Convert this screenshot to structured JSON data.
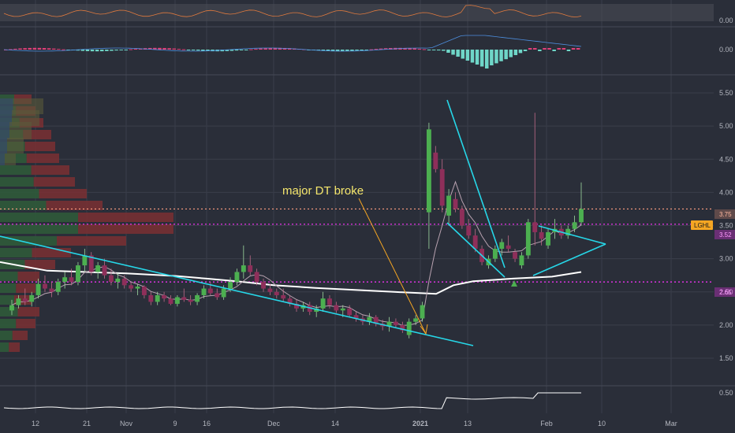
{
  "colors": {
    "background": "#2a2e39",
    "grid": "#3a3e4a",
    "up": "#4caf50",
    "down": "#8e2f5a",
    "trendline": "#26d7e8",
    "ma_long": "#ffffff",
    "ma_short": "#b8a2b0",
    "level_magenta": "#ff33ff",
    "level_orange": "#ff9e80",
    "annotation": "#f5e66c",
    "arrow": "#f5a623",
    "rsi_line": "#e07a3e",
    "macd_line": "#4d8fe0",
    "ticker_tag": "#f5a623"
  },
  "annotation": {
    "text": "major DT broke"
  },
  "ticker_tag": {
    "label": "LGHL",
    "price": "3.75"
  },
  "price_tags": {
    "magenta_upper": "3.52",
    "magenta_lower": "2.65"
  },
  "chart_data": [
    {
      "type": "line",
      "panel": "oscillator-1",
      "y_ticks": [
        "0.00"
      ]
    },
    {
      "type": "bar",
      "panel": "macd-histogram",
      "y_ticks": [
        "0.00"
      ]
    },
    {
      "type": "candlestick",
      "panel": "price",
      "x_ticks": [
        "12",
        "21",
        "Nov",
        "9",
        "16",
        "Dec",
        "14",
        "2021",
        "13",
        "Feb",
        "10",
        "Mar"
      ],
      "y_ticks": [
        "1.50",
        "2.00",
        "2.50",
        "3.00",
        "3.50",
        "4.00",
        "4.50",
        "5.00",
        "5.50"
      ],
      "ylim": [
        1.25,
        5.75
      ],
      "horizontal_levels": [
        {
          "value": 3.75,
          "style": "dotted",
          "color": "#ff9e80"
        },
        {
          "value": 3.52,
          "style": "dotted",
          "color": "#ff33ff"
        },
        {
          "value": 2.65,
          "style": "dotted",
          "color": "#ff33ff"
        }
      ],
      "candles": [
        {
          "o": 2.22,
          "h": 2.38,
          "l": 2.15,
          "c": 2.3
        },
        {
          "o": 2.3,
          "h": 2.45,
          "l": 2.25,
          "c": 2.4
        },
        {
          "o": 2.4,
          "h": 2.55,
          "l": 2.3,
          "c": 2.35
        },
        {
          "o": 2.35,
          "h": 2.5,
          "l": 2.28,
          "c": 2.45
        },
        {
          "o": 2.45,
          "h": 2.7,
          "l": 2.4,
          "c": 2.62
        },
        {
          "o": 2.62,
          "h": 2.75,
          "l": 2.5,
          "c": 2.55
        },
        {
          "o": 2.55,
          "h": 2.65,
          "l": 2.42,
          "c": 2.5
        },
        {
          "o": 2.5,
          "h": 2.7,
          "l": 2.45,
          "c": 2.65
        },
        {
          "o": 2.65,
          "h": 2.8,
          "l": 2.55,
          "c": 2.72
        },
        {
          "o": 2.72,
          "h": 2.85,
          "l": 2.6,
          "c": 2.65
        },
        {
          "o": 2.65,
          "h": 2.95,
          "l": 2.6,
          "c": 2.9
        },
        {
          "o": 2.9,
          "h": 3.15,
          "l": 2.8,
          "c": 3.05
        },
        {
          "o": 3.05,
          "h": 3.1,
          "l": 2.75,
          "c": 2.8
        },
        {
          "o": 2.8,
          "h": 2.95,
          "l": 2.7,
          "c": 2.9
        },
        {
          "o": 2.9,
          "h": 3.0,
          "l": 2.7,
          "c": 2.75
        },
        {
          "o": 2.75,
          "h": 2.85,
          "l": 2.6,
          "c": 2.65
        },
        {
          "o": 2.65,
          "h": 2.78,
          "l": 2.55,
          "c": 2.7
        },
        {
          "o": 2.7,
          "h": 2.75,
          "l": 2.55,
          "c": 2.6
        },
        {
          "o": 2.6,
          "h": 2.65,
          "l": 2.5,
          "c": 2.55
        },
        {
          "o": 2.55,
          "h": 2.62,
          "l": 2.45,
          "c": 2.58
        },
        {
          "o": 2.58,
          "h": 2.6,
          "l": 2.4,
          "c": 2.45
        },
        {
          "o": 2.45,
          "h": 2.5,
          "l": 2.3,
          "c": 2.35
        },
        {
          "o": 2.35,
          "h": 2.5,
          "l": 2.3,
          "c": 2.45
        },
        {
          "o": 2.45,
          "h": 2.5,
          "l": 2.35,
          "c": 2.4
        },
        {
          "o": 2.4,
          "h": 2.45,
          "l": 2.3,
          "c": 2.32
        },
        {
          "o": 2.32,
          "h": 2.45,
          "l": 2.28,
          "c": 2.42
        },
        {
          "o": 2.42,
          "h": 2.55,
          "l": 2.35,
          "c": 2.38
        },
        {
          "o": 2.38,
          "h": 2.45,
          "l": 2.3,
          "c": 2.35
        },
        {
          "o": 2.35,
          "h": 2.48,
          "l": 2.3,
          "c": 2.45
        },
        {
          "o": 2.45,
          "h": 2.6,
          "l": 2.4,
          "c": 2.55
        },
        {
          "o": 2.55,
          "h": 2.65,
          "l": 2.45,
          "c": 2.48
        },
        {
          "o": 2.48,
          "h": 2.55,
          "l": 2.38,
          "c": 2.42
        },
        {
          "o": 2.42,
          "h": 2.6,
          "l": 2.38,
          "c": 2.55
        },
        {
          "o": 2.55,
          "h": 2.72,
          "l": 2.5,
          "c": 2.65
        },
        {
          "o": 2.65,
          "h": 2.85,
          "l": 2.6,
          "c": 2.8
        },
        {
          "o": 2.8,
          "h": 3.2,
          "l": 2.7,
          "c": 2.9
        },
        {
          "o": 2.9,
          "h": 3.05,
          "l": 2.75,
          "c": 2.8
        },
        {
          "o": 2.8,
          "h": 2.85,
          "l": 2.6,
          "c": 2.65
        },
        {
          "o": 2.65,
          "h": 2.7,
          "l": 2.5,
          "c": 2.55
        },
        {
          "o": 2.55,
          "h": 2.62,
          "l": 2.45,
          "c": 2.5
        },
        {
          "o": 2.5,
          "h": 2.55,
          "l": 2.4,
          "c": 2.45
        },
        {
          "o": 2.45,
          "h": 2.55,
          "l": 2.35,
          "c": 2.4
        },
        {
          "o": 2.4,
          "h": 2.45,
          "l": 2.28,
          "c": 2.32
        },
        {
          "o": 2.32,
          "h": 2.38,
          "l": 2.2,
          "c": 2.25
        },
        {
          "o": 2.25,
          "h": 2.35,
          "l": 2.2,
          "c": 2.3
        },
        {
          "o": 2.3,
          "h": 2.35,
          "l": 2.15,
          "c": 2.2
        },
        {
          "o": 2.2,
          "h": 2.3,
          "l": 2.12,
          "c": 2.25
        },
        {
          "o": 2.25,
          "h": 2.5,
          "l": 2.2,
          "c": 2.4
        },
        {
          "o": 2.4,
          "h": 2.45,
          "l": 2.25,
          "c": 2.3
        },
        {
          "o": 2.3,
          "h": 2.35,
          "l": 2.18,
          "c": 2.22
        },
        {
          "o": 2.22,
          "h": 2.3,
          "l": 2.12,
          "c": 2.25
        },
        {
          "o": 2.25,
          "h": 2.3,
          "l": 2.12,
          "c": 2.15
        },
        {
          "o": 2.15,
          "h": 2.2,
          "l": 2.05,
          "c": 2.1
        },
        {
          "o": 2.1,
          "h": 2.15,
          "l": 2.0,
          "c": 2.05
        },
        {
          "o": 2.05,
          "h": 2.18,
          "l": 2.0,
          "c": 2.12
        },
        {
          "o": 2.12,
          "h": 2.15,
          "l": 1.98,
          "c": 2.02
        },
        {
          "o": 2.02,
          "h": 2.08,
          "l": 1.92,
          "c": 1.98
        },
        {
          "o": 1.98,
          "h": 2.12,
          "l": 1.9,
          "c": 2.05
        },
        {
          "o": 2.05,
          "h": 2.1,
          "l": 1.95,
          "c": 2.0
        },
        {
          "o": 2.0,
          "h": 2.05,
          "l": 1.88,
          "c": 1.92
        },
        {
          "o": 1.85,
          "h": 2.1,
          "l": 1.8,
          "c": 2.05
        },
        {
          "o": 2.05,
          "h": 2.15,
          "l": 2.0,
          "c": 2.1
        },
        {
          "o": 2.1,
          "h": 2.35,
          "l": 2.05,
          "c": 2.3
        },
        {
          "o": 3.7,
          "h": 5.05,
          "l": 3.15,
          "c": 4.95
        },
        {
          "o": 4.6,
          "h": 4.7,
          "l": 4.3,
          "c": 4.35
        },
        {
          "o": 4.35,
          "h": 4.5,
          "l": 3.7,
          "c": 3.8
        },
        {
          "o": 3.65,
          "h": 4.05,
          "l": 3.5,
          "c": 3.95
        },
        {
          "o": 3.9,
          "h": 4.0,
          "l": 3.7,
          "c": 3.75
        },
        {
          "o": 3.75,
          "h": 3.8,
          "l": 3.45,
          "c": 3.5
        },
        {
          "o": 3.5,
          "h": 3.6,
          "l": 3.3,
          "c": 3.35
        },
        {
          "o": 3.35,
          "h": 3.45,
          "l": 3.1,
          "c": 3.15
        },
        {
          "o": 3.15,
          "h": 3.2,
          "l": 2.9,
          "c": 2.95
        },
        {
          "o": 2.9,
          "h": 3.05,
          "l": 2.85,
          "c": 3.0
        },
        {
          "o": 3.0,
          "h": 3.2,
          "l": 2.95,
          "c": 3.15
        },
        {
          "o": 3.15,
          "h": 3.3,
          "l": 3.05,
          "c": 3.25
        },
        {
          "o": 3.2,
          "h": 3.35,
          "l": 3.1,
          "c": 3.15
        },
        {
          "o": 3.1,
          "h": 3.15,
          "l": 2.95,
          "c": 3.0
        },
        {
          "o": 2.9,
          "h": 3.1,
          "l": 2.85,
          "c": 3.05
        },
        {
          "o": 3.05,
          "h": 3.6,
          "l": 3.0,
          "c": 3.55
        },
        {
          "o": 3.55,
          "h": 5.2,
          "l": 3.2,
          "c": 3.4
        },
        {
          "o": 3.4,
          "h": 3.5,
          "l": 3.2,
          "c": 3.3
        },
        {
          "o": 3.2,
          "h": 3.45,
          "l": 3.15,
          "c": 3.4
        },
        {
          "o": 3.4,
          "h": 3.6,
          "l": 3.3,
          "c": 3.45
        },
        {
          "o": 3.45,
          "h": 3.5,
          "l": 3.3,
          "c": 3.35
        },
        {
          "o": 3.35,
          "h": 3.5,
          "l": 3.3,
          "c": 3.45
        },
        {
          "o": 3.45,
          "h": 3.65,
          "l": 3.4,
          "c": 3.55
        },
        {
          "o": 3.55,
          "h": 4.15,
          "l": 3.5,
          "c": 3.75
        }
      ]
    },
    {
      "type": "line",
      "panel": "indicator-bottom",
      "y_ticks": [
        "0.50"
      ]
    }
  ]
}
